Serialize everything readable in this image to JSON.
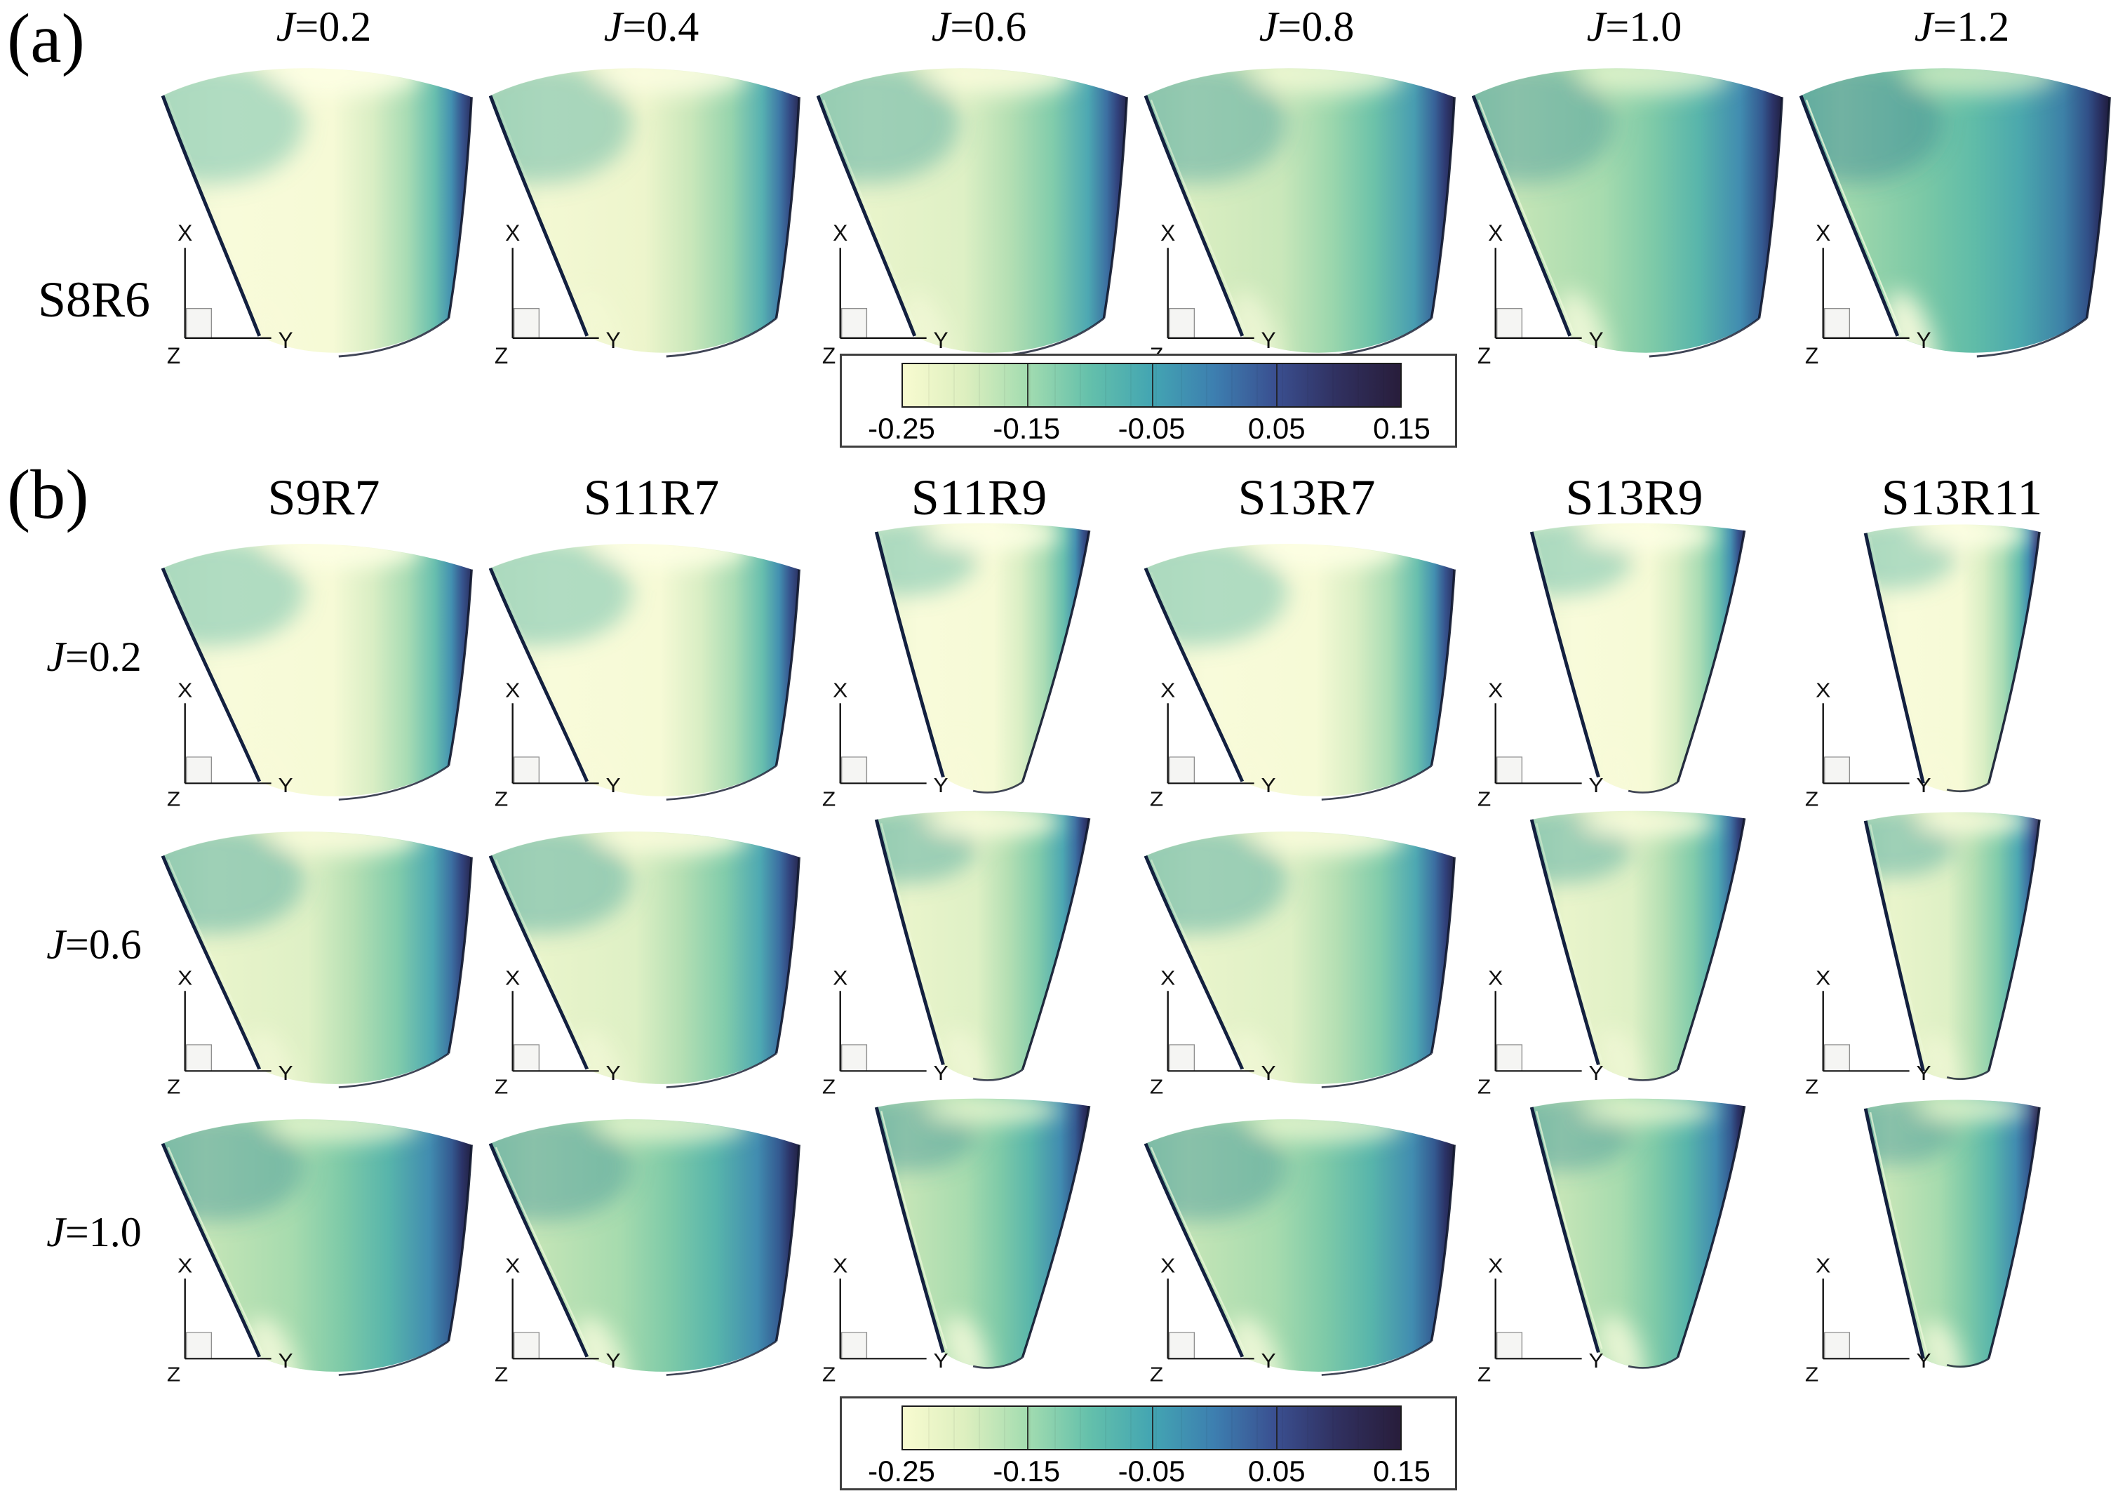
{
  "figure": {
    "background": "#ffffff",
    "panel_a": {
      "label": "(a)",
      "row_label": "S8R6",
      "column_titles": [
        "J=0.2",
        "J=0.4",
        "J=0.6",
        "J=0.8",
        "J=1.0",
        "J=1.2"
      ]
    },
    "panel_b": {
      "label": "(b)",
      "column_headers": [
        "S9R7",
        "S11R7",
        "S11R9",
        "S13R7",
        "S13R9",
        "S13R11"
      ],
      "row_labels": [
        "J=0.2",
        "J=0.6",
        "J=1.0"
      ]
    },
    "axes_triad": {
      "x_label": "X",
      "y_label": "Y",
      "z_label": "Z"
    },
    "colorbar": {
      "tick_labels": [
        "-0.25",
        "-0.15",
        "-0.05",
        "0.05",
        "0.15"
      ],
      "stops": [
        {
          "f": 0.0,
          "c": "#f8fbd0"
        },
        {
          "f": 0.125,
          "c": "#ddefbf"
        },
        {
          "f": 0.25,
          "c": "#a3dcb0"
        },
        {
          "f": 0.375,
          "c": "#64c0ab"
        },
        {
          "f": 0.5,
          "c": "#43a5b2"
        },
        {
          "f": 0.625,
          "c": "#3d7fb0"
        },
        {
          "f": 0.75,
          "c": "#3a4f90"
        },
        {
          "f": 0.875,
          "c": "#30305f"
        },
        {
          "f": 1.0,
          "c": "#281d3b"
        }
      ]
    },
    "blade_fills": {
      "0.2": {
        "stops": [
          {
            "o": 0,
            "c": "#edf5d2"
          },
          {
            "o": 0.2,
            "c": "#f8fbda"
          },
          {
            "o": 0.55,
            "c": "#f6fad6"
          },
          {
            "o": 0.68,
            "c": "#d9eec4"
          },
          {
            "o": 0.79,
            "c": "#a9dcb4"
          },
          {
            "o": 0.88,
            "c": "#68bfae"
          },
          {
            "o": 0.935,
            "c": "#4390b0"
          },
          {
            "o": 0.97,
            "c": "#36548e"
          },
          {
            "o": 1,
            "c": "#2b3161"
          }
        ],
        "corner": "rgba(105,190,170,0.5)",
        "highlight": "rgba(253,254,228,0.95)",
        "tip_opacity": 0.2,
        "accent_opacity": 0.15
      },
      "0.4": {
        "stops": [
          {
            "o": 0,
            "c": "#e4f2cb"
          },
          {
            "o": 0.18,
            "c": "#f3f8d3"
          },
          {
            "o": 0.5,
            "c": "#edf5cc"
          },
          {
            "o": 0.65,
            "c": "#c9e7ba"
          },
          {
            "o": 0.78,
            "c": "#96d4ad"
          },
          {
            "o": 0.88,
            "c": "#57b1b1"
          },
          {
            "o": 0.935,
            "c": "#3f7aa7"
          },
          {
            "o": 0.97,
            "c": "#334a84"
          },
          {
            "o": 1,
            "c": "#292b54"
          }
        ],
        "corner": "rgba(95,182,166,0.5)",
        "highlight": "rgba(252,253,225,0.9)",
        "tip_opacity": 0.3,
        "accent_opacity": 0.2
      },
      "0.6": {
        "stops": [
          {
            "o": 0,
            "c": "#d7edc2"
          },
          {
            "o": 0.16,
            "c": "#e9f4cb"
          },
          {
            "o": 0.47,
            "c": "#def0c5"
          },
          {
            "o": 0.62,
            "c": "#b4dfb3"
          },
          {
            "o": 0.76,
            "c": "#81ccab"
          },
          {
            "o": 0.875,
            "c": "#4da8b2"
          },
          {
            "o": 0.935,
            "c": "#3c70a2"
          },
          {
            "o": 0.97,
            "c": "#31427c"
          },
          {
            "o": 1,
            "c": "#27284e"
          }
        ],
        "corner": "rgba(82,172,162,0.5)",
        "highlight": "rgba(250,252,220,0.9)",
        "tip_opacity": 0.55,
        "accent_opacity": 0.45
      },
      "0.8": {
        "stops": [
          {
            "o": 0,
            "c": "#c6e6b9"
          },
          {
            "o": 0.15,
            "c": "#daeec1"
          },
          {
            "o": 0.44,
            "c": "#c9e7ba"
          },
          {
            "o": 0.6,
            "c": "#9cd7ad"
          },
          {
            "o": 0.74,
            "c": "#6cc2a9"
          },
          {
            "o": 0.87,
            "c": "#489db1"
          },
          {
            "o": 0.935,
            "c": "#386399"
          },
          {
            "o": 0.97,
            "c": "#2e3a72"
          },
          {
            "o": 1,
            "c": "#252449"
          }
        ],
        "corner": "rgba(72,160,158,0.48)",
        "highlight": "rgba(246,251,215,0.8)",
        "tip_opacity": 0.65,
        "accent_opacity": 0.55
      },
      "1.0": {
        "stops": [
          {
            "o": 0,
            "c": "#addcb0"
          },
          {
            "o": 0.14,
            "c": "#c5e5b7"
          },
          {
            "o": 0.42,
            "c": "#a6dbae"
          },
          {
            "o": 0.58,
            "c": "#7ecaa8"
          },
          {
            "o": 0.73,
            "c": "#58b5ab"
          },
          {
            "o": 0.865,
            "c": "#418cb0"
          },
          {
            "o": 0.935,
            "c": "#345a91"
          },
          {
            "o": 0.97,
            "c": "#2b3367"
          },
          {
            "o": 1,
            "c": "#222142"
          }
        ],
        "corner": "rgba(62,148,153,0.45)",
        "highlight": "rgba(240,249,210,0.75)",
        "tip_opacity": 0.8,
        "accent_opacity": 0.7
      },
      "1.2": {
        "stops": [
          {
            "o": 0,
            "c": "#88cfa9"
          },
          {
            "o": 0.13,
            "c": "#a3d9ad"
          },
          {
            "o": 0.4,
            "c": "#7ac8a6"
          },
          {
            "o": 0.56,
            "c": "#60bca8"
          },
          {
            "o": 0.71,
            "c": "#4ba8ad"
          },
          {
            "o": 0.85,
            "c": "#3d81a7"
          },
          {
            "o": 0.93,
            "c": "#315088"
          },
          {
            "o": 0.97,
            "c": "#282e5f"
          },
          {
            "o": 1,
            "c": "#1f1c3a"
          }
        ],
        "corner": "rgba(54,130,148,0.45)",
        "highlight": "rgba(228,245,200,0.7)",
        "tip_opacity": 0.9,
        "accent_opacity": 0.8
      }
    }
  },
  "chart_data": {
    "type": "heatmap",
    "subtype": "3d-blade-surface-contour",
    "description": "Filled contour maps of a surface quantity on stator/rotor blade passage sectors, viewed along Z with X up and Y right; color scale shared by all subplots.",
    "value_range": [
      -0.25,
      0.15
    ],
    "colorbar_ticks": [
      -0.25,
      -0.15,
      -0.05,
      0.05,
      0.15
    ],
    "colorbar_divider_values": [
      -0.15,
      -0.05,
      0.05
    ],
    "legend_position": "bottom-center",
    "grid": false,
    "panels": [
      {
        "panel": "a",
        "configuration": "S8R6",
        "advance_ratios_J": [
          0.2,
          0.4,
          0.6,
          0.8,
          1.0,
          1.2
        ],
        "cells": [
          {
            "config": "S8R6",
            "J": 0.2,
            "interior_level_approx": -0.245,
            "trailing_edge_level_approx": 0.13
          },
          {
            "config": "S8R6",
            "J": 0.4,
            "interior_level_approx": -0.225,
            "trailing_edge_level_approx": 0.13
          },
          {
            "config": "S8R6",
            "J": 0.6,
            "interior_level_approx": -0.205,
            "trailing_edge_level_approx": 0.14
          },
          {
            "config": "S8R6",
            "J": 0.8,
            "interior_level_approx": -0.18,
            "trailing_edge_level_approx": 0.14
          },
          {
            "config": "S8R6",
            "J": 1.0,
            "interior_level_approx": -0.15,
            "trailing_edge_level_approx": 0.15
          },
          {
            "config": "S8R6",
            "J": 1.2,
            "interior_level_approx": -0.12,
            "trailing_edge_level_approx": 0.15
          }
        ]
      },
      {
        "panel": "b",
        "configurations": [
          "S9R7",
          "S11R7",
          "S11R9",
          "S13R7",
          "S13R9",
          "S13R11"
        ],
        "advance_ratios_J": [
          0.2,
          0.6,
          1.0
        ],
        "cells": [
          {
            "config": "S9R7",
            "J": 0.2,
            "interior_level_approx": -0.24,
            "trailing_edge_level_approx": 0.13
          },
          {
            "config": "S11R7",
            "J": 0.2,
            "interior_level_approx": -0.24,
            "trailing_edge_level_approx": 0.13
          },
          {
            "config": "S11R9",
            "J": 0.2,
            "interior_level_approx": -0.24,
            "trailing_edge_level_approx": 0.13
          },
          {
            "config": "S13R7",
            "J": 0.2,
            "interior_level_approx": -0.24,
            "trailing_edge_level_approx": 0.13
          },
          {
            "config": "S13R9",
            "J": 0.2,
            "interior_level_approx": -0.24,
            "trailing_edge_level_approx": 0.13
          },
          {
            "config": "S13R11",
            "J": 0.2,
            "interior_level_approx": -0.24,
            "trailing_edge_level_approx": 0.13
          },
          {
            "config": "S9R7",
            "J": 0.6,
            "interior_level_approx": -0.2,
            "trailing_edge_level_approx": 0.14
          },
          {
            "config": "S11R7",
            "J": 0.6,
            "interior_level_approx": -0.2,
            "trailing_edge_level_approx": 0.14
          },
          {
            "config": "S11R9",
            "J": 0.6,
            "interior_level_approx": -0.2,
            "trailing_edge_level_approx": 0.14
          },
          {
            "config": "S13R7",
            "J": 0.6,
            "interior_level_approx": -0.2,
            "trailing_edge_level_approx": 0.14
          },
          {
            "config": "S13R9",
            "J": 0.6,
            "interior_level_approx": -0.2,
            "trailing_edge_level_approx": 0.14
          },
          {
            "config": "S13R11",
            "J": 0.6,
            "interior_level_approx": -0.2,
            "trailing_edge_level_approx": 0.14
          },
          {
            "config": "S9R7",
            "J": 1.0,
            "interior_level_approx": -0.15,
            "trailing_edge_level_approx": 0.15
          },
          {
            "config": "S11R7",
            "J": 1.0,
            "interior_level_approx": -0.15,
            "trailing_edge_level_approx": 0.15
          },
          {
            "config": "S11R9",
            "J": 1.0,
            "interior_level_approx": -0.15,
            "trailing_edge_level_approx": 0.15
          },
          {
            "config": "S13R7",
            "J": 1.0,
            "interior_level_approx": -0.15,
            "trailing_edge_level_approx": 0.15
          },
          {
            "config": "S13R9",
            "J": 1.0,
            "interior_level_approx": -0.15,
            "trailing_edge_level_approx": 0.15
          },
          {
            "config": "S13R11",
            "J": 1.0,
            "interior_level_approx": -0.15,
            "trailing_edge_level_approx": 0.15
          }
        ]
      }
    ]
  }
}
